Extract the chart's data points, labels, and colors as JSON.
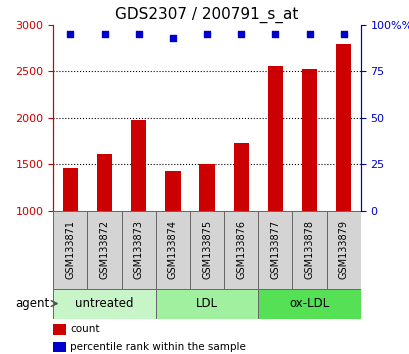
{
  "title": "GDS2307 / 200791_s_at",
  "samples": [
    "GSM133871",
    "GSM133872",
    "GSM133873",
    "GSM133874",
    "GSM133875",
    "GSM133876",
    "GSM133877",
    "GSM133878",
    "GSM133879"
  ],
  "counts": [
    1460,
    1610,
    1970,
    1430,
    1500,
    1730,
    2560,
    2520,
    2790
  ],
  "percentiles": [
    95,
    95,
    95,
    93,
    95,
    95,
    95,
    95,
    95
  ],
  "ylim_left": [
    1000,
    3000
  ],
  "ylim_right": [
    0,
    100
  ],
  "yticks_left": [
    1000,
    1500,
    2000,
    2500,
    3000
  ],
  "yticks_right": [
    0,
    25,
    50,
    75,
    100
  ],
  "bar_color": "#cc0000",
  "dot_color": "#0000cc",
  "bar_width": 0.45,
  "groups": [
    {
      "label": "untreated",
      "start": 0,
      "end": 3,
      "color": "#c8f5c8"
    },
    {
      "label": "LDL",
      "start": 3,
      "end": 6,
      "color": "#a0f0a0"
    },
    {
      "label": "ox-LDL",
      "start": 6,
      "end": 9,
      "color": "#55e055"
    }
  ],
  "xlabel_agent": "agent",
  "legend_count": "count",
  "legend_pct": "percentile rank within the sample",
  "title_fontsize": 11,
  "tick_label_fontsize": 7,
  "axis_label_fontsize": 8.5,
  "sample_label_fontsize": 7,
  "group_label_fontsize": 8.5,
  "cell_bg": "#d4d4d4",
  "cell_edge": "#666666",
  "plot_bg": "#ffffff"
}
